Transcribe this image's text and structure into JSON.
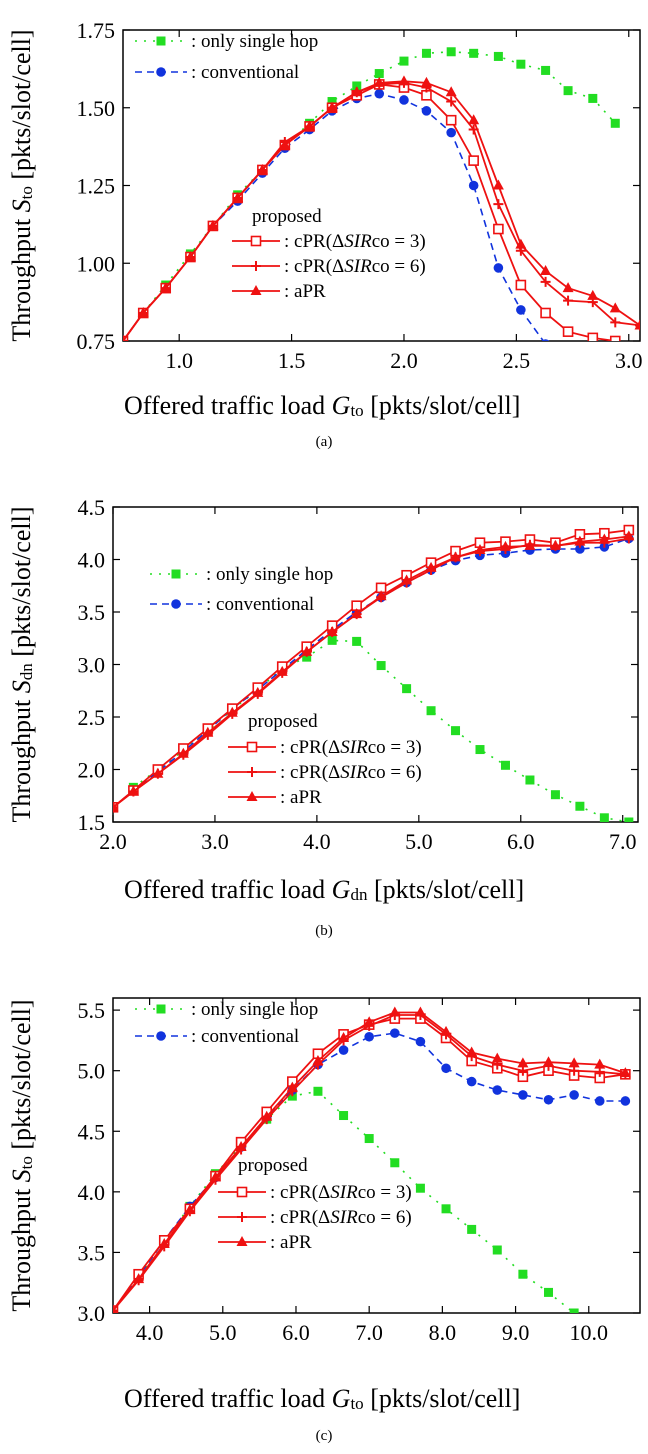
{
  "captions": [
    "(a)",
    "(b)",
    "(c)"
  ],
  "colors": {
    "single": "#22dd22",
    "conventional": "#1133dd",
    "proposed": "#ee1111"
  },
  "chart_data": [
    {
      "type": "line",
      "panel": "(a)",
      "xlabel": "Offered traffic load",
      "xsymbol": "G",
      "xsub": "to",
      "xunit": "[pkts/slot/cell]",
      "ylabel": "Throughput",
      "ysymbol": "S",
      "ysub": "to",
      "yunit": "[pkts/slot/cell]",
      "xlim": [
        0.75,
        3.05
      ],
      "ylim": [
        0.75,
        1.75
      ],
      "xticks": [
        1.0,
        1.5,
        2.0,
        2.5,
        3.0
      ],
      "xtick_labels": [
        "1.0",
        "1.5",
        "2.0",
        "2.5",
        "3.0"
      ],
      "yticks": [
        0.75,
        1.0,
        1.25,
        1.5,
        1.75
      ],
      "ytick_labels": [
        "0.75",
        "1.00",
        "1.25",
        "1.50",
        "1.75"
      ],
      "legend_top": [
        {
          "series": "single",
          "label": ": only single hop"
        },
        {
          "series": "conv",
          "label": ": conventional"
        }
      ],
      "legend_proposed_title": "proposed",
      "legend_bottom": [
        {
          "series": "cpr3",
          "prefix": ": cPR(Δ",
          "italic": "SIR",
          "suffix": "co = 3)"
        },
        {
          "series": "cpr6",
          "prefix": ": cPR(Δ",
          "italic": "SIR",
          "suffix": "co = 6)"
        },
        {
          "series": "apr",
          "prefix": ": aPR",
          "italic": "",
          "suffix": ""
        }
      ],
      "series": [
        {
          "name": "only single hop",
          "key": "single",
          "x": [
            0.84,
            0.94,
            1.05,
            1.15,
            1.26,
            1.37,
            1.47,
            1.58,
            1.68,
            1.79,
            1.89,
            2.0,
            2.1,
            2.21,
            2.31,
            2.42,
            2.52,
            2.63,
            2.73,
            2.84,
            2.94
          ],
          "y": [
            0.84,
            0.93,
            1.03,
            1.12,
            1.22,
            1.3,
            1.38,
            1.45,
            1.52,
            1.57,
            1.61,
            1.65,
            1.675,
            1.68,
            1.675,
            1.665,
            1.64,
            1.62,
            1.555,
            1.53,
            1.45
          ]
        },
        {
          "name": "conventional",
          "key": "conv",
          "x": [
            0.75,
            0.84,
            0.94,
            1.05,
            1.15,
            1.26,
            1.37,
            1.47,
            1.58,
            1.68,
            1.79,
            1.89,
            2.0,
            2.1,
            2.21,
            2.31,
            2.42,
            2.52,
            2.63
          ],
          "y": [
            0.75,
            0.84,
            0.92,
            1.02,
            1.12,
            1.2,
            1.29,
            1.37,
            1.43,
            1.49,
            1.53,
            1.545,
            1.525,
            1.49,
            1.42,
            1.25,
            0.985,
            0.85,
            0.74
          ]
        },
        {
          "name": "cPR(ΔSIRco = 3)",
          "key": "cpr3",
          "x": [
            0.75,
            0.84,
            0.94,
            1.05,
            1.15,
            1.26,
            1.37,
            1.47,
            1.58,
            1.68,
            1.79,
            1.89,
            2.0,
            2.1,
            2.21,
            2.31,
            2.42,
            2.52,
            2.63,
            2.73,
            2.84,
            2.94
          ],
          "y": [
            0.75,
            0.84,
            0.92,
            1.02,
            1.12,
            1.21,
            1.3,
            1.38,
            1.44,
            1.5,
            1.54,
            1.575,
            1.565,
            1.54,
            1.46,
            1.33,
            1.11,
            0.93,
            0.84,
            0.78,
            0.76,
            0.75
          ]
        },
        {
          "name": "cPR(ΔSIRco = 6)",
          "key": "cpr6",
          "x": [
            0.75,
            0.84,
            0.94,
            1.05,
            1.15,
            1.26,
            1.37,
            1.47,
            1.58,
            1.68,
            1.79,
            1.89,
            2.0,
            2.1,
            2.21,
            2.31,
            2.42,
            2.52,
            2.63,
            2.73,
            2.84,
            2.94,
            3.05
          ],
          "y": [
            0.75,
            0.84,
            0.92,
            1.02,
            1.12,
            1.21,
            1.3,
            1.39,
            1.44,
            1.5,
            1.55,
            1.575,
            1.58,
            1.565,
            1.52,
            1.43,
            1.19,
            1.04,
            0.94,
            0.88,
            0.875,
            0.81,
            0.8
          ]
        },
        {
          "name": "aPR",
          "key": "apr",
          "x": [
            0.75,
            0.84,
            0.94,
            1.05,
            1.15,
            1.26,
            1.37,
            1.47,
            1.58,
            1.68,
            1.79,
            1.89,
            2.0,
            2.1,
            2.21,
            2.31,
            2.42,
            2.52,
            2.63,
            2.73,
            2.84,
            2.94,
            3.05
          ],
          "y": [
            0.75,
            0.84,
            0.92,
            1.02,
            1.12,
            1.21,
            1.3,
            1.38,
            1.44,
            1.5,
            1.55,
            1.58,
            1.585,
            1.58,
            1.55,
            1.46,
            1.25,
            1.06,
            0.975,
            0.92,
            0.895,
            0.855,
            0.8
          ]
        }
      ]
    },
    {
      "type": "line",
      "panel": "(b)",
      "xlabel": "Offered traffic load",
      "xsymbol": "G",
      "xsub": "dn",
      "xunit": "[pkts/slot/cell]",
      "ylabel": "Throughput",
      "ysymbol": "S",
      "ysub": "dn",
      "yunit": "[pkts/slot/cell]",
      "xlim": [
        2.0,
        7.15
      ],
      "ylim": [
        1.5,
        4.5
      ],
      "xticks": [
        2.0,
        3.0,
        4.0,
        5.0,
        6.0,
        7.0
      ],
      "xtick_labels": [
        "2.0",
        "3.0",
        "4.0",
        "5.0",
        "6.0",
        "7.0"
      ],
      "yticks": [
        1.5,
        2.0,
        2.5,
        3.0,
        3.5,
        4.0,
        4.5
      ],
      "ytick_labels": [
        "1.5",
        "2.0",
        "2.5",
        "3.0",
        "3.5",
        "4.0",
        "4.5"
      ],
      "legend_top": [
        {
          "series": "single",
          "label": ": only single hop"
        },
        {
          "series": "conv",
          "label": ": conventional"
        }
      ],
      "legend_proposed_title": "proposed",
      "legend_bottom": [
        {
          "series": "cpr3",
          "prefix": ": cPR(Δ",
          "italic": "SIR",
          "suffix": "co = 3)"
        },
        {
          "series": "cpr6",
          "prefix": ": cPR(Δ",
          "italic": "SIR",
          "suffix": "co = 6)"
        },
        {
          "series": "apr",
          "prefix": ": aPR",
          "italic": "",
          "suffix": ""
        }
      ],
      "series": [
        {
          "name": "only single hop",
          "key": "single",
          "x": [
            2.2,
            2.44,
            2.69,
            2.93,
            3.17,
            3.42,
            3.66,
            3.9,
            4.15,
            4.39,
            4.63,
            4.88,
            5.12,
            5.36,
            5.6,
            5.85,
            6.09,
            6.34,
            6.58,
            6.82,
            7.06
          ],
          "y": [
            1.83,
            2.0,
            2.18,
            2.37,
            2.57,
            2.76,
            2.96,
            3.07,
            3.23,
            3.22,
            2.99,
            2.77,
            2.56,
            2.37,
            2.19,
            2.04,
            1.9,
            1.76,
            1.65,
            1.54,
            1.5
          ]
        },
        {
          "name": "conventional",
          "key": "conv",
          "x": [
            2.0,
            2.2,
            2.44,
            2.69,
            2.93,
            3.17,
            3.42,
            3.66,
            3.9,
            4.15,
            4.39,
            4.63,
            4.88,
            5.12,
            5.36,
            5.6,
            5.85,
            6.09,
            6.34,
            6.58,
            6.82,
            7.06
          ],
          "y": [
            1.64,
            1.8,
            1.98,
            2.17,
            2.37,
            2.58,
            2.76,
            2.95,
            3.14,
            3.33,
            3.5,
            3.64,
            3.78,
            3.9,
            3.99,
            4.04,
            4.06,
            4.09,
            4.1,
            4.1,
            4.12,
            4.2
          ]
        },
        {
          "name": "cPR(ΔSIRco = 3)",
          "key": "cpr3",
          "x": [
            2.0,
            2.2,
            2.44,
            2.69,
            2.93,
            3.17,
            3.42,
            3.66,
            3.9,
            4.15,
            4.39,
            4.63,
            4.88,
            5.12,
            5.36,
            5.6,
            5.85,
            6.09,
            6.34,
            6.58,
            6.82,
            7.06
          ],
          "y": [
            1.64,
            1.8,
            2.0,
            2.2,
            2.39,
            2.58,
            2.78,
            2.98,
            3.17,
            3.37,
            3.56,
            3.73,
            3.85,
            3.97,
            4.08,
            4.16,
            4.17,
            4.19,
            4.16,
            4.24,
            4.25,
            4.28
          ]
        },
        {
          "name": "cPR(ΔSIRco = 6)",
          "key": "cpr6",
          "x": [
            2.0,
            2.2,
            2.44,
            2.69,
            2.93,
            3.17,
            3.42,
            3.66,
            3.9,
            4.15,
            4.39,
            4.63,
            4.88,
            5.12,
            5.36,
            5.6,
            5.85,
            6.09,
            6.34,
            6.58,
            6.82,
            7.06
          ],
          "y": [
            1.64,
            1.79,
            1.96,
            2.14,
            2.33,
            2.53,
            2.72,
            2.92,
            3.12,
            3.31,
            3.48,
            3.64,
            3.78,
            3.9,
            4.02,
            4.08,
            4.1,
            4.14,
            4.13,
            4.16,
            4.16,
            4.2
          ]
        },
        {
          "name": "aPR",
          "key": "apr",
          "x": [
            2.0,
            2.2,
            2.44,
            2.69,
            2.93,
            3.17,
            3.42,
            3.66,
            3.9,
            4.15,
            4.39,
            4.63,
            4.88,
            5.12,
            5.36,
            5.6,
            5.85,
            6.09,
            6.34,
            6.58,
            6.82,
            7.06
          ],
          "y": [
            1.64,
            1.79,
            1.96,
            2.15,
            2.35,
            2.54,
            2.73,
            2.93,
            3.12,
            3.31,
            3.48,
            3.65,
            3.8,
            3.92,
            4.02,
            4.09,
            4.12,
            4.13,
            4.13,
            4.17,
            4.19,
            4.22
          ]
        }
      ]
    },
    {
      "type": "line",
      "panel": "(c)",
      "xlabel": "Offered traffic load",
      "xsymbol": "G",
      "xsub": "to",
      "xunit": "[pkts/slot/cell]",
      "ylabel": "Throughput",
      "ysymbol": "S",
      "ysub": "to",
      "yunit": "[pkts/slot/cell]",
      "xlim": [
        3.5,
        10.7
      ],
      "ylim": [
        3.0,
        5.6
      ],
      "xticks": [
        4.0,
        5.0,
        6.0,
        7.0,
        8.0,
        9.0,
        10.0
      ],
      "xtick_labels": [
        "4.0",
        "5.0",
        "6.0",
        "7.0",
        "8.0",
        "9.0",
        "10.0"
      ],
      "yticks": [
        3.0,
        3.5,
        4.0,
        4.5,
        5.0,
        5.5
      ],
      "ytick_labels": [
        "3.0",
        "3.5",
        "4.0",
        "4.5",
        "5.0",
        "5.5"
      ],
      "legend_top": [
        {
          "series": "single",
          "label": ": only single hop"
        },
        {
          "series": "conv",
          "label": ": conventional"
        }
      ],
      "legend_proposed_title": "proposed",
      "legend_bottom": [
        {
          "series": "cpr3",
          "prefix": ": cPR(Δ",
          "italic": "SIR",
          "suffix": "co = 3)"
        },
        {
          "series": "cpr6",
          "prefix": ": cPR(Δ",
          "italic": "SIR",
          "suffix": "co = 6)"
        },
        {
          "series": "apr",
          "prefix": ": aPR",
          "italic": "",
          "suffix": ""
        }
      ],
      "series": [
        {
          "name": "only single hop",
          "key": "single",
          "x": [
            3.5,
            3.85,
            4.2,
            4.55,
            4.9,
            5.25,
            5.6,
            5.95,
            6.3,
            6.65,
            7.0,
            7.35,
            7.7,
            8.05,
            8.4,
            8.75,
            9.1,
            9.45,
            9.8
          ],
          "y": [
            3.02,
            3.3,
            3.6,
            3.88,
            4.15,
            4.38,
            4.6,
            4.79,
            4.83,
            4.63,
            4.44,
            4.24,
            4.03,
            3.86,
            3.69,
            3.52,
            3.32,
            3.17,
            3.0
          ]
        },
        {
          "name": "conventional",
          "key": "conv",
          "x": [
            3.5,
            3.85,
            4.2,
            4.55,
            4.9,
            5.25,
            5.6,
            5.95,
            6.3,
            6.65,
            7.0,
            7.35,
            7.7,
            8.05,
            8.4,
            8.75,
            9.1,
            9.45,
            9.8,
            10.15,
            10.5
          ],
          "y": [
            3.02,
            3.3,
            3.6,
            3.88,
            4.12,
            4.37,
            4.62,
            4.84,
            5.05,
            5.17,
            5.28,
            5.31,
            5.24,
            5.02,
            4.91,
            4.84,
            4.8,
            4.76,
            4.8,
            4.75,
            4.75
          ]
        },
        {
          "name": "cPR(ΔSIRco = 3)",
          "key": "cpr3",
          "x": [
            3.5,
            3.85,
            4.2,
            4.55,
            4.9,
            5.25,
            5.6,
            5.95,
            6.3,
            6.65,
            7.0,
            7.35,
            7.7,
            8.05,
            8.4,
            8.75,
            9.1,
            9.45,
            9.8,
            10.15,
            10.5
          ],
          "y": [
            3.02,
            3.32,
            3.6,
            3.86,
            4.13,
            4.41,
            4.66,
            4.91,
            5.14,
            5.3,
            5.38,
            5.43,
            5.43,
            5.27,
            5.08,
            5.02,
            4.95,
            5.0,
            4.96,
            4.94,
            4.97
          ]
        },
        {
          "name": "cPR(ΔSIRco = 6)",
          "key": "cpr6",
          "x": [
            3.5,
            3.85,
            4.2,
            4.55,
            4.9,
            5.25,
            5.6,
            5.95,
            6.3,
            6.65,
            7.0,
            7.35,
            7.7,
            8.05,
            8.4,
            8.75,
            9.1,
            9.45,
            9.8,
            10.15,
            10.5
          ],
          "y": [
            3.02,
            3.27,
            3.55,
            3.84,
            4.1,
            4.35,
            4.6,
            4.83,
            5.05,
            5.25,
            5.37,
            5.46,
            5.46,
            5.3,
            5.12,
            5.05,
            5.0,
            5.04,
            5.0,
            4.99,
            4.97
          ]
        },
        {
          "name": "aPR",
          "key": "apr",
          "x": [
            3.5,
            3.85,
            4.2,
            4.55,
            4.9,
            5.25,
            5.6,
            5.95,
            6.3,
            6.65,
            7.0,
            7.35,
            7.7,
            8.05,
            8.4,
            8.75,
            9.1,
            9.45,
            9.8,
            10.15,
            10.5
          ],
          "y": [
            3.02,
            3.28,
            3.57,
            3.85,
            4.12,
            4.37,
            4.62,
            4.86,
            5.08,
            5.27,
            5.4,
            5.48,
            5.48,
            5.32,
            5.15,
            5.1,
            5.06,
            5.07,
            5.06,
            5.05,
            4.98
          ]
        }
      ]
    }
  ]
}
